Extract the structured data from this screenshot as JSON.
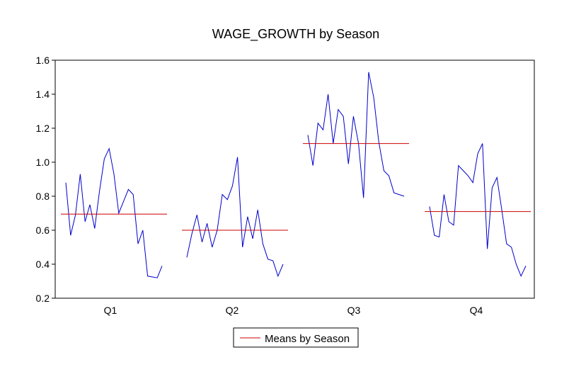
{
  "chart_data": {
    "type": "line",
    "title": "WAGE_GROWTH by Season",
    "xlabel": "",
    "ylabel": "",
    "ylim": [
      0.2,
      1.6
    ],
    "yticks": [
      0.2,
      0.4,
      0.6,
      0.8,
      1.0,
      1.2,
      1.4,
      1.6
    ],
    "ytick_labels": [
      "0.2",
      "0.4",
      "0.6",
      "0.8",
      "1.0",
      "1.2",
      "1.4",
      "1.6"
    ],
    "categories": [
      "Q1",
      "Q2",
      "Q3",
      "Q4"
    ],
    "grid": false,
    "legend_position": "bottom-center",
    "legend": [
      {
        "label": "Means by Season",
        "color": "#cc0000"
      }
    ],
    "series_color": "#0000cc",
    "mean_color": "#cc0000",
    "groups": [
      {
        "label": "Q1",
        "mean": 0.695,
        "values": [
          0.88,
          0.57,
          0.69,
          0.93,
          0.65,
          0.75,
          0.61,
          0.83,
          1.02,
          1.08,
          0.93,
          0.7,
          0.77,
          0.84,
          0.81,
          0.52,
          0.6,
          0.33,
          0.325,
          0.32,
          0.39
        ]
      },
      {
        "label": "Q2",
        "mean": 0.6,
        "values": [
          0.44,
          0.58,
          0.69,
          0.53,
          0.64,
          0.5,
          0.6,
          0.81,
          0.78,
          0.86,
          1.03,
          0.5,
          0.68,
          0.55,
          0.72,
          0.52,
          0.43,
          0.42,
          0.33,
          0.4
        ]
      },
      {
        "label": "Q3",
        "mean": 1.11,
        "values": [
          1.16,
          0.98,
          1.23,
          1.19,
          1.4,
          1.11,
          1.31,
          1.27,
          0.99,
          1.27,
          1.11,
          0.79,
          1.53,
          1.38,
          1.12,
          0.95,
          0.92,
          0.82,
          0.81,
          0.8
        ]
      },
      {
        "label": "Q4",
        "mean": 0.71,
        "values": [
          0.74,
          0.57,
          0.56,
          0.81,
          0.65,
          0.63,
          0.98,
          0.95,
          0.92,
          0.88,
          1.05,
          1.11,
          0.49,
          0.85,
          0.91,
          0.72,
          0.52,
          0.5,
          0.4,
          0.33,
          0.39
        ]
      }
    ]
  }
}
